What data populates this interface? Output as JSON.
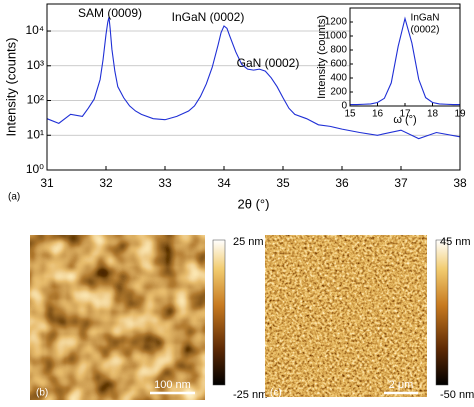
{
  "chart_data": [
    {
      "type": "line",
      "log_y": true,
      "grid": true,
      "x_label": "2θ (°)",
      "y_label": "Intensity (counts)",
      "annotations": [
        "SAM (0009)",
        "InGaN (0002)",
        "GaN (0002)",
        "(a)"
      ],
      "xlim": [
        31,
        38
      ],
      "xticks": [
        31,
        32,
        33,
        34,
        35,
        36,
        37,
        38
      ],
      "ylim": [
        1,
        60000
      ],
      "yticks": [
        {
          "value": 1,
          "label": "10⁰"
        },
        {
          "value": 10,
          "label": "10¹"
        },
        {
          "value": 100,
          "label": "10²"
        },
        {
          "value": 1000,
          "label": "10³"
        },
        {
          "value": 10000,
          "label": "10⁴"
        }
      ],
      "x": [
        31.0,
        31.2,
        31.4,
        31.6,
        31.7,
        31.8,
        31.9,
        31.95,
        32.0,
        32.03,
        32.05,
        32.07,
        32.1,
        32.15,
        32.2,
        32.3,
        32.4,
        32.5,
        32.6,
        32.8,
        33.0,
        33.2,
        33.4,
        33.5,
        33.6,
        33.7,
        33.8,
        33.9,
        33.95,
        34.0,
        34.05,
        34.1,
        34.2,
        34.3,
        34.4,
        34.5,
        34.6,
        34.7,
        34.8,
        34.9,
        35.0,
        35.1,
        35.2,
        35.4,
        35.6,
        35.8,
        36.0,
        36.3,
        36.6,
        37.0,
        37.3,
        37.6,
        38.0
      ],
      "series": [
        {
          "color": "#1f2fd6",
          "values": [
            30,
            22,
            40,
            35,
            60,
            110,
            400,
            1500,
            8000,
            18000,
            25000,
            12000,
            3000,
            700,
            250,
            120,
            70,
            50,
            40,
            30,
            28,
            35,
            50,
            70,
            130,
            300,
            900,
            4000,
            9000,
            14000,
            12000,
            7000,
            2500,
            1100,
            800,
            750,
            800,
            700,
            450,
            250,
            120,
            60,
            40,
            30,
            20,
            18,
            15,
            12,
            10,
            14,
            8,
            12,
            9
          ]
        }
      ]
    },
    {
      "type": "line",
      "log_y": false,
      "grid": false,
      "x_label": "ω (°)",
      "y_label": "Intensity (counts)",
      "annotations": [
        "InGaN",
        "(0002)"
      ],
      "xlim": [
        15,
        19
      ],
      "xticks": [
        15,
        16,
        17,
        18,
        19
      ],
      "ylim": [
        0,
        1400
      ],
      "yticks": [
        0,
        200,
        400,
        600,
        800,
        1000,
        1200
      ],
      "x": [
        15,
        15.25,
        15.5,
        15.75,
        16,
        16.25,
        16.5,
        16.75,
        17,
        17.25,
        17.5,
        17.75,
        18,
        18.25,
        18.5,
        18.75,
        19
      ],
      "series": [
        {
          "color": "#1f2fd6",
          "values": [
            20,
            20,
            25,
            30,
            50,
            110,
            330,
            850,
            1250,
            900,
            380,
            120,
            50,
            30,
            25,
            20,
            20
          ]
        }
      ]
    }
  ],
  "images": [
    {
      "label": "(b)",
      "scale_bar": "100 nm",
      "colorbar_max": "25 nm",
      "colorbar_min": "-25 nm"
    },
    {
      "label": "(c)",
      "scale_bar": "2 μm",
      "colorbar_max": "45 nm",
      "colorbar_min": "-50 nm"
    }
  ]
}
